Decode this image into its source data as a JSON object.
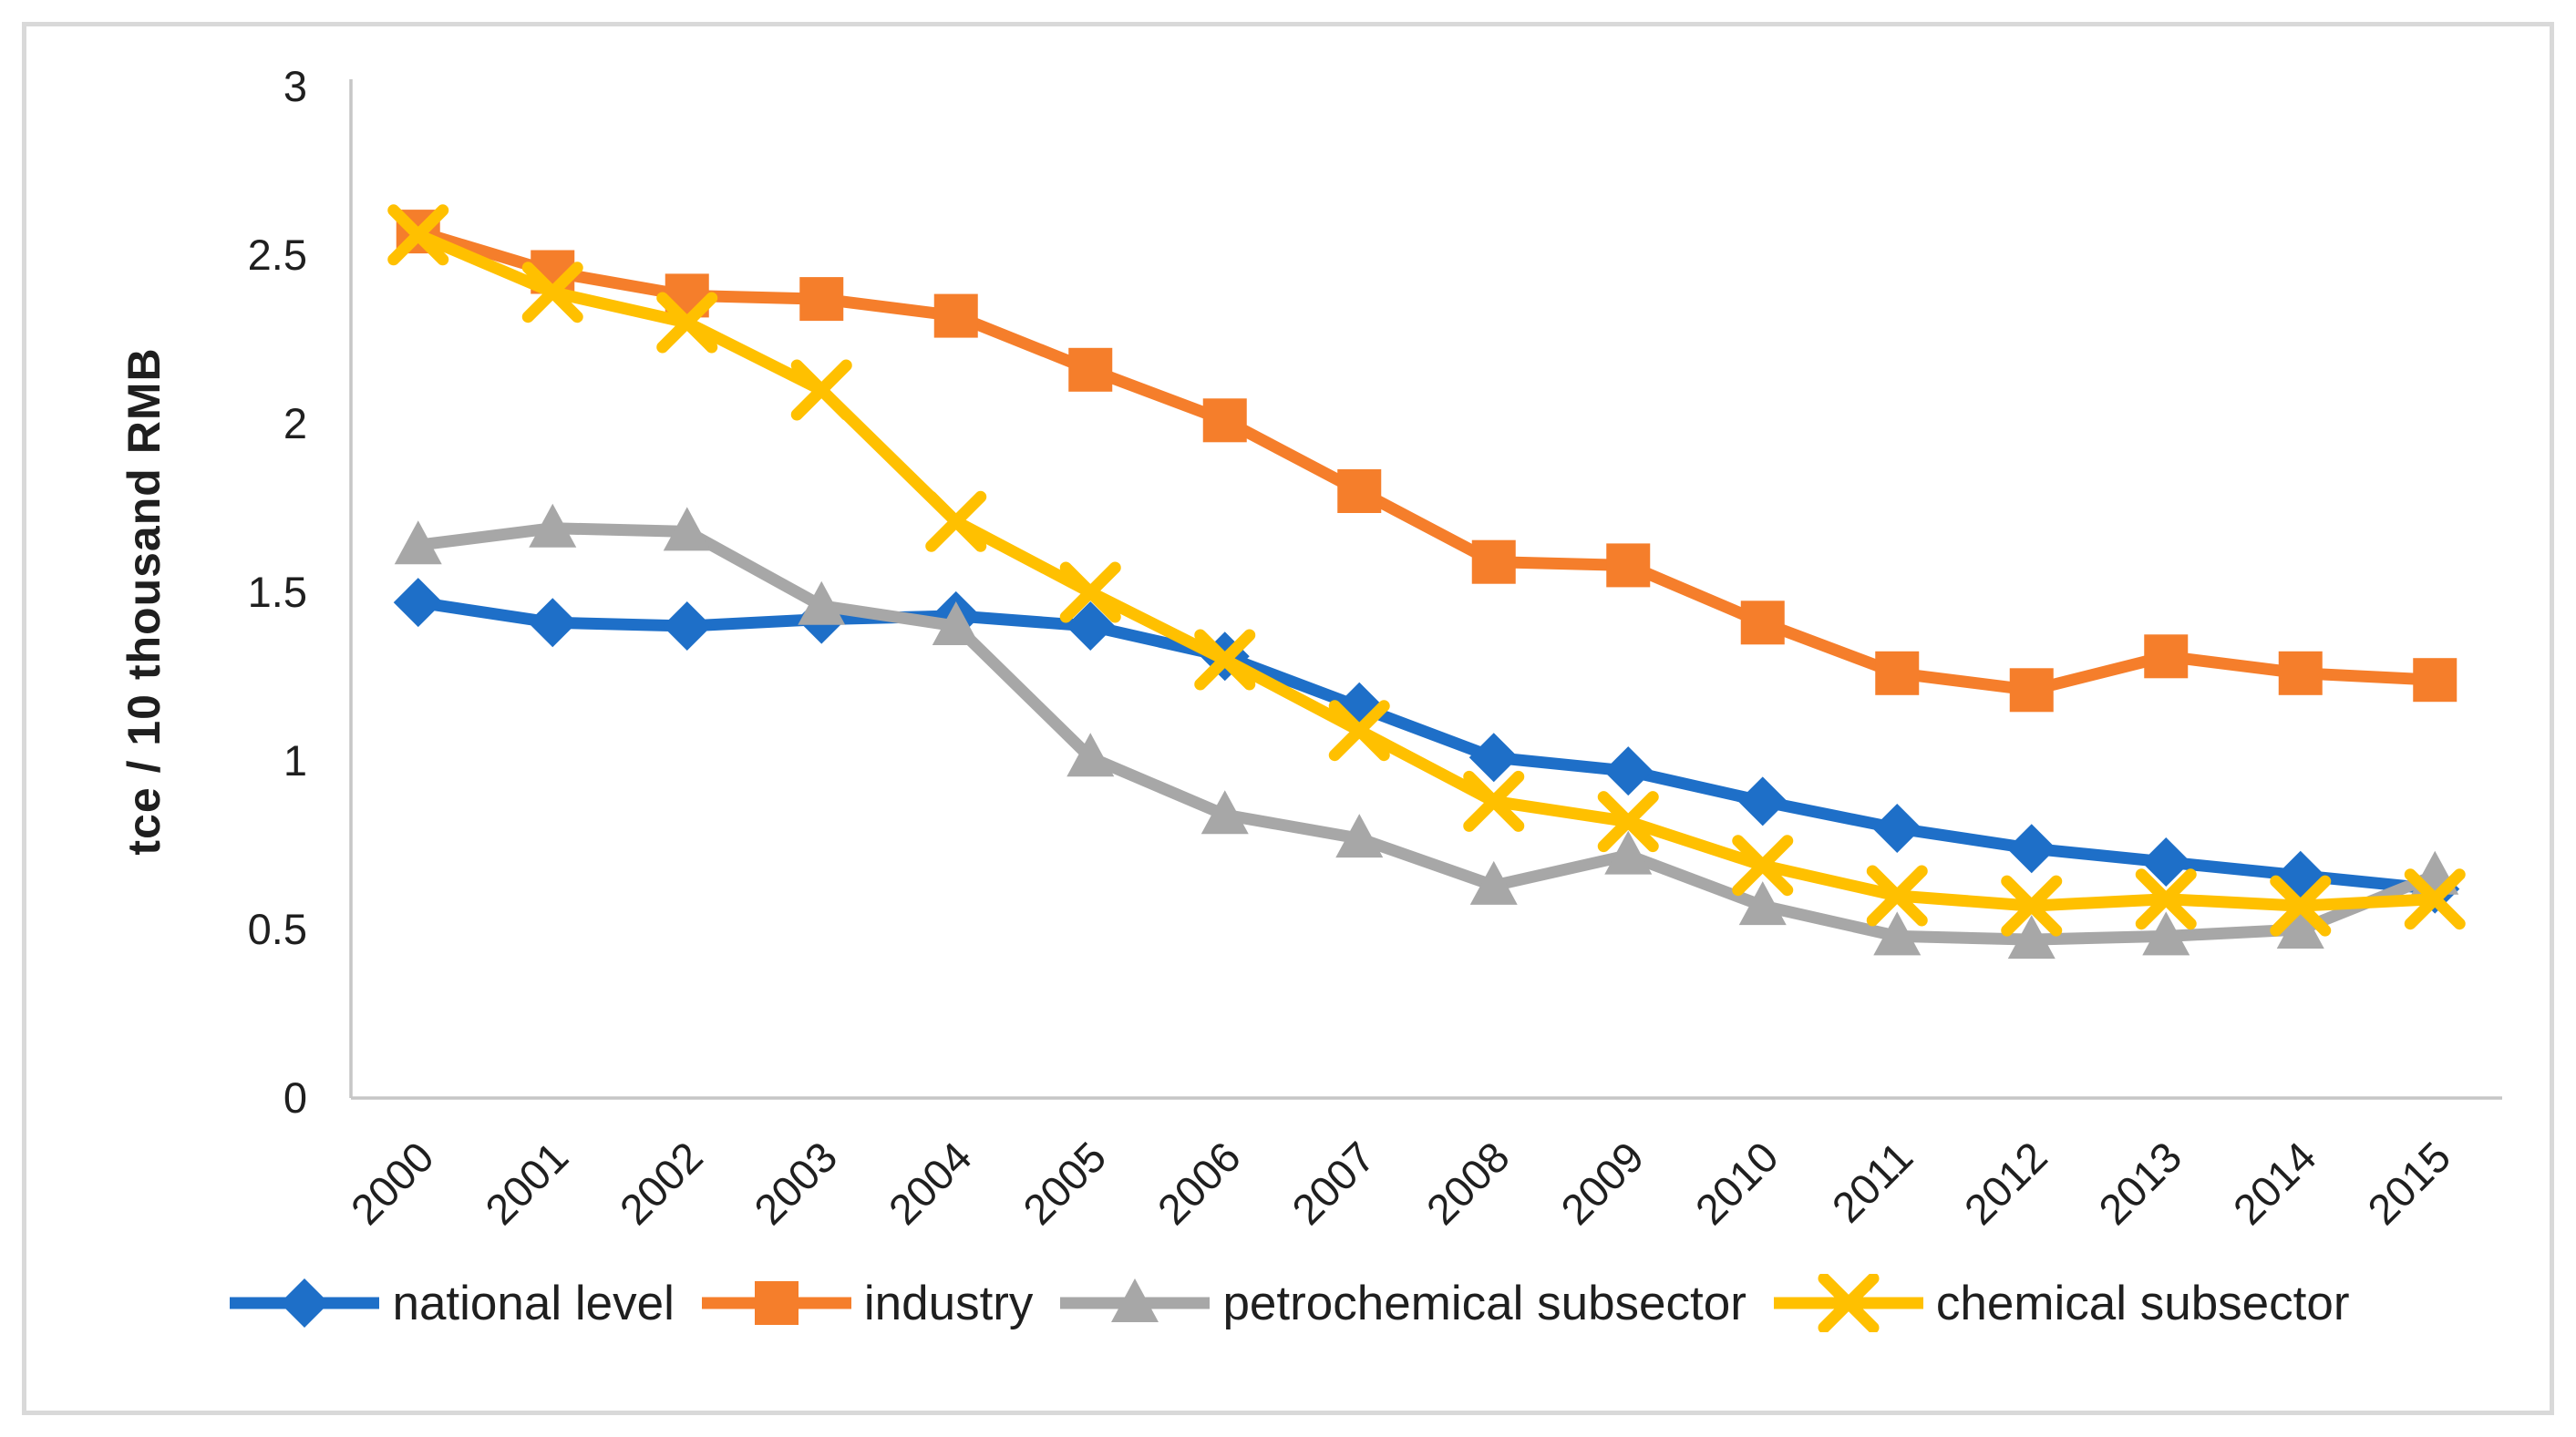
{
  "figure": {
    "background": "#FFFFFF",
    "border_color": "#D9D9D9"
  },
  "chart_data": {
    "type": "line",
    "title": "",
    "xlabel": "",
    "ylabel": "tce / 10 thousand RMB",
    "ylim": [
      0,
      3
    ],
    "ytick_step": 0.5,
    "yticks": [
      "0",
      "0.5",
      "1",
      "1.5",
      "2",
      "2.5",
      "3"
    ],
    "grid": false,
    "legend_position": "bottom",
    "axis_color": "#C6C6C6",
    "text_color": "#1F1F1F",
    "x_categories": [
      "2000",
      "2001",
      "2002",
      "2003",
      "2004",
      "2005",
      "2006",
      "2007",
      "2008",
      "2009",
      "2010",
      "2011",
      "2012",
      "2013",
      "2014",
      "2015"
    ],
    "series": [
      {
        "name": "national level",
        "marker": "diamond",
        "color": "#1E6FC8",
        "values": [
          1.47,
          1.41,
          1.4,
          1.42,
          1.43,
          1.4,
          1.31,
          1.16,
          1.01,
          0.97,
          0.88,
          0.8,
          0.74,
          0.7,
          0.66,
          0.62
        ]
      },
      {
        "name": "industry",
        "marker": "square",
        "color": "#F57E2B",
        "values": [
          2.57,
          2.45,
          2.38,
          2.37,
          2.32,
          2.16,
          2.01,
          1.8,
          1.59,
          1.58,
          1.41,
          1.26,
          1.21,
          1.31,
          1.26,
          1.24
        ]
      },
      {
        "name": "petrochemical subsector",
        "marker": "triangle",
        "color": "#A7A7A7",
        "values": [
          1.64,
          1.69,
          1.68,
          1.46,
          1.4,
          1.01,
          0.84,
          0.77,
          0.63,
          0.72,
          0.57,
          0.48,
          0.47,
          0.48,
          0.5,
          0.66
        ]
      },
      {
        "name": "chemical subsector",
        "marker": "x-cross",
        "color": "#FFC000",
        "values": [
          2.56,
          2.39,
          2.3,
          2.1,
          1.71,
          1.5,
          1.3,
          1.09,
          0.88,
          0.82,
          0.69,
          0.6,
          0.57,
          0.59,
          0.57,
          0.59
        ]
      }
    ]
  }
}
